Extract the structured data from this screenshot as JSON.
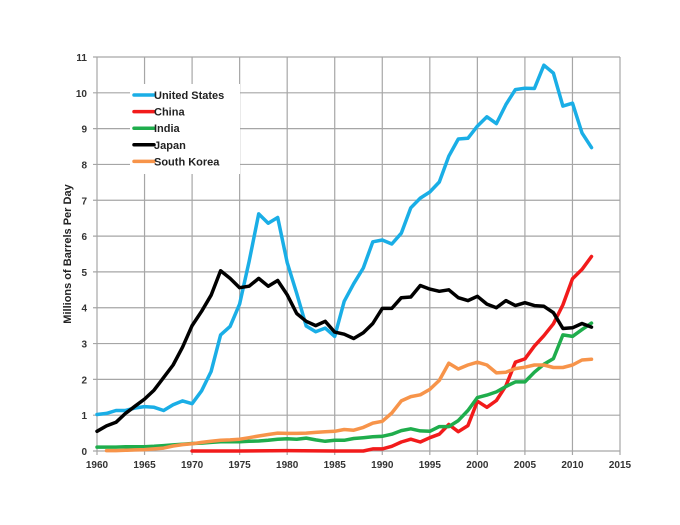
{
  "chart_data": {
    "type": "line",
    "title": "",
    "xlabel": "",
    "ylabel": "Millions of Barrels Per Day",
    "xlim": [
      1960,
      2015
    ],
    "ylim": [
      0,
      11
    ],
    "xticks": [
      1960,
      1965,
      1970,
      1975,
      1980,
      1985,
      1990,
      1995,
      2000,
      2005,
      2010,
      2015
    ],
    "yticks": [
      0,
      1,
      2,
      3,
      4,
      5,
      6,
      7,
      8,
      9,
      10,
      11
    ],
    "grid": true,
    "legend_position": "top-left",
    "series": [
      {
        "name": "United States",
        "color": "#1aaee6",
        "x": [
          1960,
          1961,
          1962,
          1963,
          1964,
          1965,
          1966,
          1967,
          1968,
          1969,
          1970,
          1971,
          1972,
          1973,
          1974,
          1975,
          1976,
          1977,
          1978,
          1979,
          1980,
          1981,
          1982,
          1983,
          1984,
          1985,
          1986,
          1987,
          1988,
          1989,
          1990,
          1991,
          1992,
          1993,
          1994,
          1995,
          1996,
          1997,
          1998,
          1999,
          2000,
          2001,
          2002,
          2003,
          2004,
          2005,
          2006,
          2007,
          2008,
          2009,
          2010,
          2011,
          2012
        ],
        "values": [
          1.02,
          1.05,
          1.13,
          1.13,
          1.2,
          1.24,
          1.22,
          1.13,
          1.29,
          1.4,
          1.32,
          1.68,
          2.22,
          3.24,
          3.48,
          4.1,
          5.29,
          6.62,
          6.36,
          6.52,
          5.26,
          4.4,
          3.49,
          3.33,
          3.43,
          3.2,
          4.18,
          4.67,
          5.11,
          5.84,
          5.89,
          5.78,
          6.08,
          6.79,
          7.06,
          7.23,
          7.51,
          8.23,
          8.71,
          8.73,
          9.07,
          9.33,
          9.14,
          9.67,
          10.09,
          10.13,
          10.12,
          10.77,
          10.55,
          9.63,
          9.71,
          8.88,
          8.47
        ]
      },
      {
        "name": "China",
        "color": "#f21b1b",
        "x": [
          1970,
          1975,
          1980,
          1985,
          1988,
          1989,
          1990,
          1991,
          1992,
          1993,
          1994,
          1995,
          1996,
          1997,
          1998,
          1999,
          2000,
          2001,
          2002,
          2003,
          2004,
          2005,
          2006,
          2007,
          2008,
          2009,
          2010,
          2011,
          2012
        ],
        "values": [
          0.0,
          0.0,
          0.01,
          0.0,
          0.0,
          0.06,
          0.06,
          0.13,
          0.25,
          0.33,
          0.25,
          0.37,
          0.47,
          0.74,
          0.54,
          0.71,
          1.39,
          1.22,
          1.41,
          1.82,
          2.48,
          2.57,
          2.93,
          3.22,
          3.55,
          4.08,
          4.81,
          5.07,
          5.43
        ]
      },
      {
        "name": "India",
        "color": "#1fad4c",
        "x": [
          1960,
          1961,
          1962,
          1963,
          1964,
          1965,
          1966,
          1967,
          1968,
          1969,
          1970,
          1971,
          1972,
          1973,
          1974,
          1975,
          1976,
          1977,
          1978,
          1979,
          1980,
          1981,
          1982,
          1983,
          1984,
          1985,
          1986,
          1987,
          1988,
          1989,
          1990,
          1991,
          1992,
          1993,
          1994,
          1995,
          1996,
          1997,
          1998,
          1999,
          2000,
          2001,
          2002,
          2003,
          2004,
          2005,
          2006,
          2007,
          2008,
          2009,
          2010,
          2011,
          2012
        ],
        "values": [
          0.11,
          0.11,
          0.11,
          0.12,
          0.12,
          0.12,
          0.13,
          0.15,
          0.17,
          0.19,
          0.21,
          0.22,
          0.24,
          0.26,
          0.26,
          0.26,
          0.27,
          0.28,
          0.3,
          0.33,
          0.34,
          0.33,
          0.36,
          0.31,
          0.27,
          0.3,
          0.3,
          0.35,
          0.37,
          0.4,
          0.41,
          0.47,
          0.57,
          0.62,
          0.56,
          0.55,
          0.68,
          0.68,
          0.85,
          1.13,
          1.49,
          1.56,
          1.65,
          1.8,
          1.93,
          1.93,
          2.2,
          2.42,
          2.58,
          3.24,
          3.2,
          3.39,
          3.57
        ]
      },
      {
        "name": "Japan",
        "color": "#000000",
        "x": [
          1960,
          1961,
          1962,
          1963,
          1964,
          1965,
          1966,
          1967,
          1968,
          1969,
          1970,
          1971,
          1972,
          1973,
          1974,
          1975,
          1976,
          1977,
          1978,
          1979,
          1980,
          1981,
          1982,
          1983,
          1984,
          1985,
          1986,
          1987,
          1988,
          1989,
          1990,
          1991,
          1992,
          1993,
          1994,
          1995,
          1996,
          1997,
          1998,
          1999,
          2000,
          2001,
          2002,
          2003,
          2004,
          2005,
          2006,
          2007,
          2008,
          2009,
          2010,
          2011,
          2012
        ],
        "values": [
          0.55,
          0.7,
          0.8,
          1.05,
          1.25,
          1.45,
          1.7,
          2.05,
          2.4,
          2.9,
          3.5,
          3.9,
          4.35,
          5.03,
          4.82,
          4.56,
          4.6,
          4.82,
          4.6,
          4.76,
          4.36,
          3.84,
          3.62,
          3.5,
          3.62,
          3.32,
          3.26,
          3.14,
          3.3,
          3.56,
          3.98,
          3.98,
          4.28,
          4.3,
          4.62,
          4.52,
          4.46,
          4.5,
          4.28,
          4.2,
          4.32,
          4.1,
          4.0,
          4.2,
          4.06,
          4.14,
          4.06,
          4.04,
          3.86,
          3.42,
          3.44,
          3.56,
          3.46
        ]
      },
      {
        "name": "South Korea",
        "color": "#f7944a",
        "x": [
          1961,
          1962,
          1963,
          1964,
          1965,
          1966,
          1967,
          1968,
          1969,
          1970,
          1971,
          1972,
          1973,
          1974,
          1975,
          1976,
          1977,
          1978,
          1979,
          1980,
          1981,
          1982,
          1983,
          1984,
          1985,
          1986,
          1987,
          1988,
          1989,
          1990,
          1991,
          1992,
          1993,
          1994,
          1995,
          1996,
          1997,
          1998,
          1999,
          2000,
          2001,
          2002,
          2003,
          2004,
          2005,
          2006,
          2007,
          2008,
          2009,
          2010,
          2011,
          2012
        ],
        "values": [
          0.01,
          0.01,
          0.02,
          0.03,
          0.04,
          0.06,
          0.08,
          0.14,
          0.18,
          0.2,
          0.24,
          0.27,
          0.3,
          0.31,
          0.33,
          0.37,
          0.42,
          0.46,
          0.5,
          0.49,
          0.49,
          0.5,
          0.52,
          0.54,
          0.55,
          0.6,
          0.58,
          0.66,
          0.78,
          0.83,
          1.06,
          1.4,
          1.52,
          1.57,
          1.72,
          1.97,
          2.45,
          2.29,
          2.4,
          2.48,
          2.4,
          2.18,
          2.2,
          2.3,
          2.34,
          2.4,
          2.4,
          2.33,
          2.33,
          2.4,
          2.54,
          2.56
        ]
      }
    ]
  }
}
